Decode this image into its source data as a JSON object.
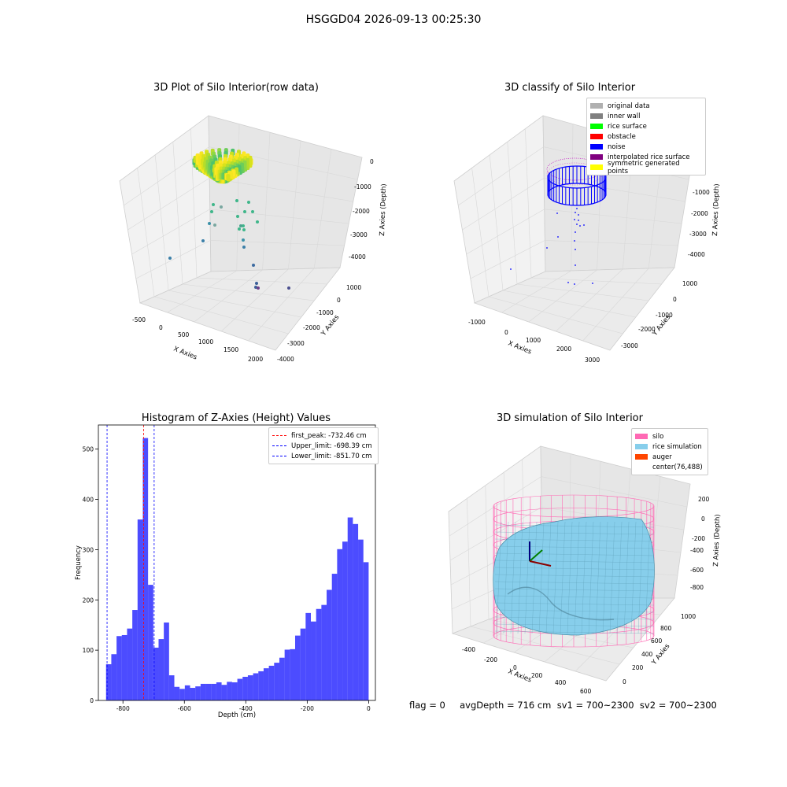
{
  "suptitle": "HSGGD04 2026-09-13 00:25:30",
  "panels": {
    "raw": {
      "title": "3D Plot of Silo Interior(row data)",
      "xlabel": "X Axies",
      "ylabel": "Y Axies",
      "zlabel": "Z Axies (Depth)",
      "xticks": [
        "-500",
        "0",
        "500",
        "1000",
        "1500",
        "2000"
      ],
      "yticks": [
        "1000",
        "0",
        "-1000",
        "-2000",
        "-3000",
        "-4000"
      ],
      "zticks": [
        "0",
        "-1000",
        "-2000",
        "-3000",
        "-4000"
      ]
    },
    "classify": {
      "title": "3D classify of Silo Interior",
      "xlabel": "X Axies",
      "ylabel": "Y Axies",
      "zlabel": "Z Axies (Depth)",
      "xticks": [
        "-1000",
        "0",
        "1000",
        "2000",
        "3000"
      ],
      "yticks": [
        "1000",
        "0",
        "-1000",
        "-2000",
        "-3000"
      ],
      "zticks": [
        "0",
        "-1000",
        "-2000",
        "-3000",
        "-4000"
      ],
      "legend": [
        {
          "label": "original data",
          "color": "#b0b0b0"
        },
        {
          "label": "inner wall",
          "color": "#808080"
        },
        {
          "label": "rice surface",
          "color": "#00ff00"
        },
        {
          "label": "obstacle",
          "color": "#ff0000"
        },
        {
          "label": "noise",
          "color": "#0000ff"
        },
        {
          "label": "interpolated rice surface",
          "color": "#800080"
        },
        {
          "label": "symmetric generated points",
          "color": "#ffff00"
        }
      ]
    },
    "simulation": {
      "title": "3D simulation of Silo Interior",
      "xlabel": "X Axies",
      "ylabel": "Y Axies",
      "zlabel": "Z Axies (Depth)",
      "xticks": [
        "-400",
        "-200",
        "0",
        "200",
        "400",
        "600"
      ],
      "yticks": [
        "0",
        "200",
        "400",
        "600",
        "800",
        "1000"
      ],
      "zticks": [
        "200",
        "0",
        "-200",
        "-400",
        "-600",
        "-800"
      ],
      "legend": [
        {
          "label": "silo",
          "color": "#ff69b4"
        },
        {
          "label": "rice simulation",
          "color": "#87ceeb"
        },
        {
          "label": "auger",
          "color": "#ff4500"
        },
        {
          "label": "center(76,488)",
          "color": "#ffffff"
        }
      ]
    }
  },
  "chart_data": {
    "type": "bar",
    "title": "Histogram of Z-Axies (Height) Values",
    "xlabel": "Depth (cm)",
    "ylabel": "Frequency",
    "xlim": [
      -880,
      22
    ],
    "ylim": [
      0,
      548
    ],
    "xticks": [
      -800,
      -600,
      -400,
      -200,
      0
    ],
    "yticks": [
      0,
      100,
      200,
      300,
      400,
      500
    ],
    "bar_color": "#0000ff",
    "bin_start": -855,
    "bin_width": 17.1,
    "values": [
      72,
      92,
      128,
      130,
      143,
      180,
      360,
      522,
      230,
      105,
      122,
      155,
      50,
      27,
      23,
      30,
      25,
      28,
      33,
      33,
      33,
      36,
      31,
      37,
      36,
      43,
      47,
      50,
      54,
      58,
      64,
      69,
      75,
      85,
      101,
      102,
      129,
      143,
      174,
      157,
      182,
      190,
      220,
      252,
      301,
      316,
      364,
      351,
      320,
      275
    ],
    "reference_lines": [
      {
        "label": "first_peak: -732.46 cm",
        "value": -732.46,
        "color": "#ff0000"
      },
      {
        "label": "Upper_limit: -698.39 cm",
        "value": -698.39,
        "color": "#0000ff"
      },
      {
        "label": "Lower_limit: -851.70 cm",
        "value": -851.7,
        "color": "#0000ff"
      }
    ]
  },
  "footer": {
    "text": "flag = 0     avgDepth = 716 cm  sv1 = 700~2300  sv2 = 700~2300"
  }
}
